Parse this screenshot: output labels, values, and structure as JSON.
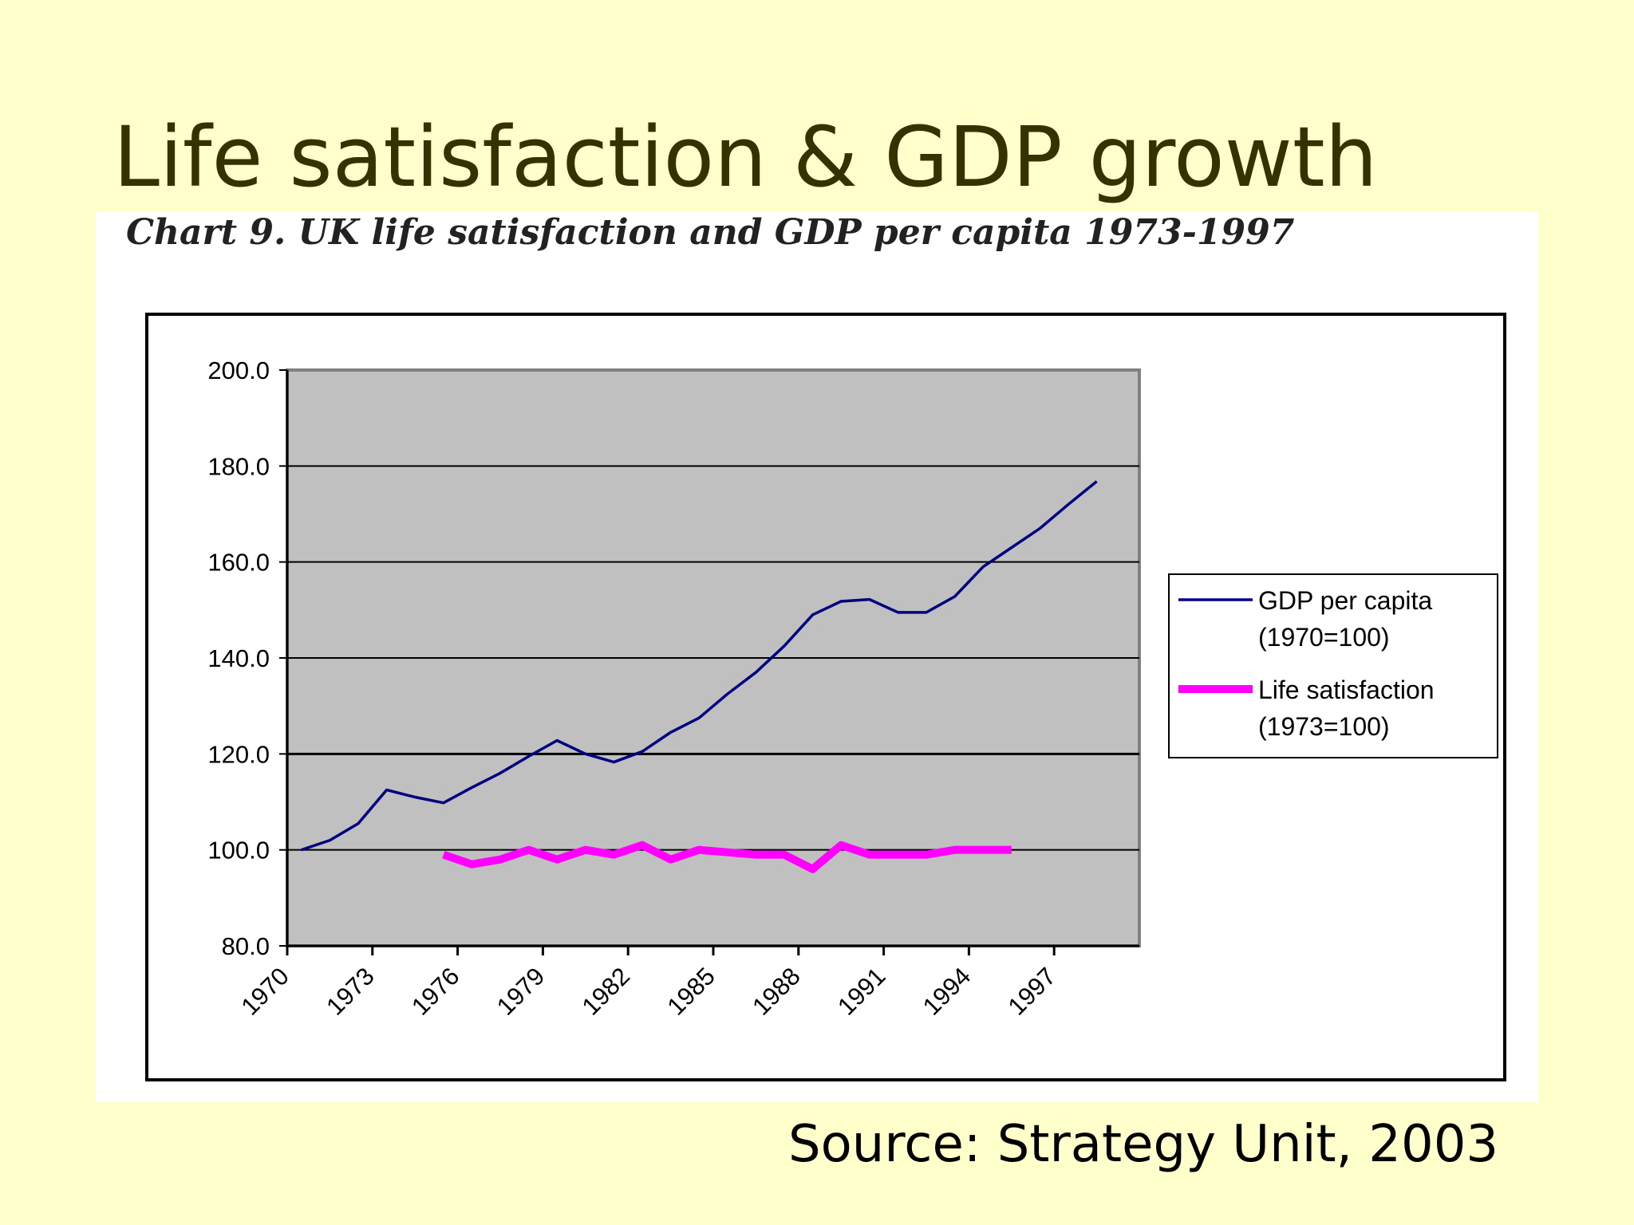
{
  "slide": {
    "title": "Life satisfaction & GDP growth",
    "source": "Source: Strategy Unit, 2003"
  },
  "colors": {
    "background": "#ffffcc",
    "title": "#333300",
    "plot_area": "#c0c0c0",
    "gdp_line": "#000080",
    "life_line": "#ff00ff"
  },
  "chart_data": {
    "type": "line",
    "title": "Chart 9.  UK life satisfaction and GDP per capita 1973-1997",
    "xlabel": "",
    "ylabel": "",
    "x": [
      1970,
      1971,
      1972,
      1973,
      1974,
      1975,
      1976,
      1977,
      1978,
      1979,
      1980,
      1981,
      1982,
      1983,
      1984,
      1985,
      1986,
      1987,
      1988,
      1989,
      1990,
      1991,
      1992,
      1993,
      1994,
      1995,
      1996,
      1997,
      1998,
      1999
    ],
    "x_tick_labels": [
      "1970",
      "1973",
      "1976",
      "1979",
      "1982",
      "1985",
      "1988",
      "1991",
      "1994",
      "1997"
    ],
    "y_tick_labels": [
      "200.0",
      "180.0",
      "160.0",
      "140.0",
      "120.0",
      "100.0",
      "80.0"
    ],
    "ylim": [
      80,
      200
    ],
    "grid": true,
    "legend_position": "right",
    "series": [
      {
        "name": "GDP per capita (1970=100)",
        "legend_lines": [
          "GDP per capita",
          "(1970=100)"
        ],
        "values": [
          100.0,
          102.0,
          105.5,
          112.5,
          111.0,
          109.8,
          113.0,
          116.0,
          119.5,
          122.8,
          120.0,
          118.3,
          120.5,
          124.5,
          127.5,
          132.5,
          137.0,
          142.5,
          149.0,
          151.8,
          152.2,
          149.5,
          149.5,
          152.8,
          159.0,
          163.0,
          167.0,
          172.0,
          176.8,
          null
        ]
      },
      {
        "name": "Life satisfaction (1973=100)",
        "legend_lines": [
          "Life satisfaction",
          "(1973=100)"
        ],
        "values": [
          null,
          null,
          null,
          null,
          null,
          99.0,
          97.0,
          98.0,
          100.0,
          98.0,
          100.0,
          99.0,
          101.0,
          98.0,
          100.0,
          99.5,
          99.0,
          99.0,
          96.0,
          101.0,
          99.0,
          99.0,
          99.0,
          100.0,
          100.0,
          100.0,
          null,
          null,
          null,
          null
        ]
      }
    ]
  }
}
